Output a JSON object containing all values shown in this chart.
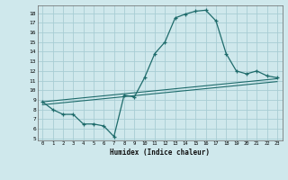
{
  "xlabel": "Humidex (Indice chaleur)",
  "xlim": [
    -0.5,
    23.5
  ],
  "ylim": [
    4.8,
    18.8
  ],
  "yticks": [
    5,
    6,
    7,
    8,
    9,
    10,
    11,
    12,
    13,
    14,
    15,
    16,
    17,
    18
  ],
  "xticks": [
    0,
    1,
    2,
    3,
    4,
    5,
    6,
    7,
    8,
    9,
    10,
    11,
    12,
    13,
    14,
    15,
    16,
    17,
    18,
    19,
    20,
    21,
    22,
    23
  ],
  "background_color": "#cfe8ec",
  "grid_color": "#a8cdd4",
  "line_color": "#1e6b6b",
  "curve1_x": [
    0,
    1,
    2,
    3,
    4,
    5,
    6,
    7,
    8,
    9,
    10,
    11,
    12,
    13,
    14,
    15,
    16,
    17,
    18,
    19,
    20,
    21,
    22,
    23
  ],
  "curve1_y": [
    8.8,
    8.0,
    7.5,
    7.5,
    6.5,
    6.5,
    6.3,
    5.2,
    9.5,
    9.3,
    11.3,
    13.8,
    15.0,
    17.5,
    17.9,
    18.2,
    18.3,
    17.2,
    13.8,
    12.0,
    11.7,
    12.0,
    11.5,
    11.3
  ],
  "curve2_x": [
    0,
    23
  ],
  "curve2_y": [
    8.8,
    11.2
  ],
  "curve3_x": [
    0,
    23
  ],
  "curve3_y": [
    8.5,
    10.9
  ]
}
